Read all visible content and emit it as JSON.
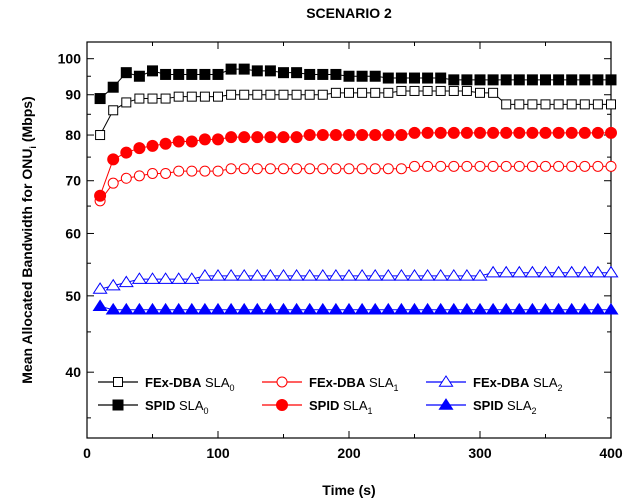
{
  "chart_data": {
    "type": "line",
    "title": "SCENARIO 2",
    "xlabel": "Time (s)",
    "ylabel": "Mean Allocated Bandwidth for ONU",
    "ylabel_sub": "i",
    "ylabel_unit": " (Mbps)",
    "xlim": [
      0,
      400
    ],
    "ylim": [
      33,
      105
    ],
    "yscale": "log",
    "x_ticks": [
      0,
      100,
      200,
      300,
      400
    ],
    "y_ticks": [
      40,
      50,
      60,
      70,
      80,
      90,
      100
    ],
    "grid": false,
    "legend_position": "lower-left",
    "x": [
      10,
      20,
      30,
      40,
      50,
      60,
      70,
      80,
      90,
      100,
      110,
      120,
      130,
      140,
      150,
      160,
      170,
      180,
      190,
      200,
      210,
      220,
      230,
      240,
      250,
      260,
      270,
      280,
      290,
      300,
      310,
      320,
      330,
      340,
      350,
      360,
      370,
      380,
      390,
      400
    ],
    "series": [
      {
        "name": "FEx-DBA",
        "sub": "0",
        "color": "#000000",
        "marker": "square",
        "filled": false,
        "values": [
          80,
          86,
          88,
          89,
          89,
          89,
          89.5,
          89.5,
          89.5,
          89.5,
          90,
          90,
          90,
          90,
          90,
          90,
          90,
          90,
          90.5,
          90.5,
          90.5,
          90.5,
          90.5,
          91,
          91,
          91,
          91,
          91,
          91,
          90.5,
          90.5,
          87.5,
          87.5,
          87.5,
          87.5,
          87.5,
          87.5,
          87.5,
          87.5,
          87.5
        ]
      },
      {
        "name": "FEx-DBA",
        "sub": "1",
        "color": "#ff0000",
        "marker": "circle",
        "filled": false,
        "values": [
          66,
          69.5,
          70.5,
          71,
          71.5,
          71.5,
          72,
          72,
          72,
          72,
          72.5,
          72.5,
          72.5,
          72.5,
          72.5,
          72.5,
          72.5,
          72.5,
          72.5,
          72.5,
          72.5,
          72.5,
          72.5,
          72.5,
          73,
          73,
          73,
          73,
          73,
          73,
          73,
          73,
          73,
          73,
          73,
          73,
          73,
          73,
          73,
          73
        ]
      },
      {
        "name": "FEx-DBA",
        "sub": "2",
        "color": "#0000ff",
        "marker": "triangle",
        "filled": false,
        "values": [
          51,
          51.5,
          52,
          52.5,
          52.5,
          52.5,
          52.5,
          52.5,
          53,
          53,
          53,
          53,
          53,
          53,
          53,
          53,
          53,
          53,
          53,
          53,
          53,
          53,
          53,
          53,
          53,
          53,
          53,
          53,
          53,
          53,
          53.5,
          53.5,
          53.5,
          53.5,
          53.5,
          53.5,
          53.5,
          53.5,
          53.5,
          53.5
        ]
      },
      {
        "name": "SPID",
        "sub": "0",
        "color": "#000000",
        "marker": "square",
        "filled": true,
        "values": [
          89,
          92,
          96,
          95,
          96.5,
          95.5,
          95.5,
          95.5,
          95.5,
          95.5,
          97,
          97,
          96.5,
          96.5,
          96,
          96,
          95.5,
          95.5,
          95.5,
          95,
          95,
          95,
          94.5,
          94.5,
          94.5,
          94.5,
          94.5,
          94,
          94,
          94,
          94,
          94,
          94,
          94,
          94,
          94,
          94,
          94,
          94,
          94
        ]
      },
      {
        "name": "SPID",
        "sub": "1",
        "color": "#ff0000",
        "marker": "circle",
        "filled": true,
        "values": [
          67,
          74.5,
          76,
          77,
          77.5,
          78,
          78.5,
          78.5,
          79,
          79,
          79.5,
          79.5,
          79.5,
          79.5,
          79.5,
          79.5,
          80,
          80,
          80,
          80,
          80,
          80,
          80,
          80,
          80.5,
          80.5,
          80.5,
          80.5,
          80.5,
          80.5,
          80.5,
          80.5,
          80.5,
          80.5,
          80.5,
          80.5,
          80.5,
          80.5,
          80.5,
          80.5
        ]
      },
      {
        "name": "SPID",
        "sub": "2",
        "color": "#0000ff",
        "marker": "triangle",
        "filled": true,
        "values": [
          48.5,
          48,
          48,
          48,
          48,
          48,
          48,
          48,
          48,
          48,
          48,
          48,
          48,
          48,
          48,
          48,
          48,
          48,
          48,
          48,
          48,
          48,
          48,
          48,
          48,
          48,
          48,
          48,
          48,
          48,
          48,
          48,
          48,
          48,
          48,
          48,
          48,
          48,
          48,
          48
        ]
      }
    ],
    "legend_items": [
      {
        "name": "FEx-DBA",
        "label": " SLA",
        "sub": "0"
      },
      {
        "name": "FEx-DBA",
        "label": " SLA",
        "sub": "1"
      },
      {
        "name": "FEx-DBA",
        "label": " SLA",
        "sub": "2"
      },
      {
        "name": "SPID",
        "label": " SLA",
        "sub": "0"
      },
      {
        "name": "SPID",
        "label": " SLA",
        "sub": "1"
      },
      {
        "name": "SPID",
        "label": " SLA",
        "sub": "2"
      }
    ]
  }
}
